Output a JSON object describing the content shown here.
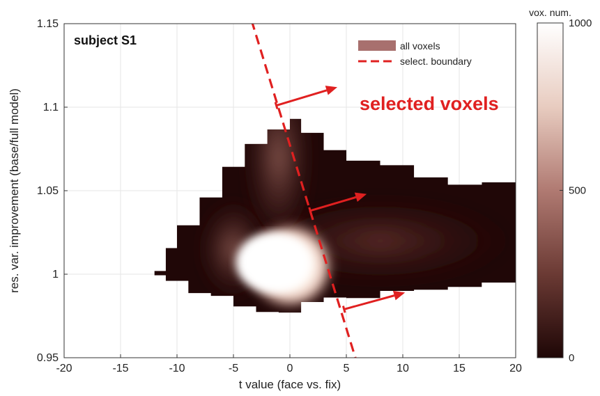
{
  "chart_data": {
    "type": "heatmap",
    "title": "subject S1",
    "xlabel": "t value (face vs. fix)",
    "ylabel": "res. var. improvement (base/full model)",
    "xlim": [
      -20,
      20
    ],
    "ylim": [
      0.95,
      1.15
    ],
    "xticks": [
      -20,
      -15,
      -10,
      -5,
      0,
      5,
      10,
      15,
      20
    ],
    "xtick_labels": [
      "-20",
      "-15",
      "-10",
      "-5",
      "0",
      "5",
      "10",
      "15",
      "20"
    ],
    "yticks": [
      0.95,
      1.0,
      1.05,
      1.1,
      1.15
    ],
    "ytick_labels": [
      "0.95",
      "1",
      "1.05",
      "1.1",
      "1.15"
    ],
    "grid": true,
    "legend": {
      "placement": "top-right",
      "entries": [
        {
          "label": "all voxels",
          "color": "#a8706e"
        },
        {
          "label": "select. boundary",
          "color": "#e02020",
          "style": "dashed"
        }
      ]
    },
    "colorbar": {
      "title": "vox. num.",
      "range": [
        0,
        1000
      ],
      "ticks": [
        0,
        500,
        1000
      ],
      "tick_labels": [
        "0",
        "500",
        "1000"
      ],
      "colors": [
        "#1e0606",
        "#6b3a34",
        "#b07a72",
        "#e8ccc0",
        "#ffffff"
      ]
    },
    "density": {
      "peak": {
        "t": -1.5,
        "r": 1.007,
        "count": 1000
      },
      "core": {
        "t": 0.0,
        "r": 1.005
      },
      "upper_lobe_peak": {
        "t": -1.0,
        "r": 1.07
      },
      "extent_t": [
        -12,
        20
      ],
      "extent_r": [
        0.977,
        1.093
      ],
      "upper_edge": [
        {
          "t": -12,
          "r": 1.0
        },
        {
          "t": -11,
          "r": 1.015
        },
        {
          "t": -10,
          "r": 1.03
        },
        {
          "t": -8,
          "r": 1.048
        },
        {
          "t": -6,
          "r": 1.063
        },
        {
          "t": -4,
          "r": 1.078
        },
        {
          "t": -2,
          "r": 1.088
        },
        {
          "t": 0,
          "r": 1.091
        },
        {
          "t": 1,
          "r": 1.084
        },
        {
          "t": 3,
          "r": 1.075
        },
        {
          "t": 5,
          "r": 1.07
        },
        {
          "t": 8,
          "r": 1.064
        },
        {
          "t": 11,
          "r": 1.058
        },
        {
          "t": 14,
          "r": 1.055
        },
        {
          "t": 17,
          "r": 1.053
        },
        {
          "t": 20,
          "r": 1.05
        }
      ],
      "lower_edge": [
        {
          "t": 20,
          "r": 0.997
        },
        {
          "t": 17,
          "r": 0.993
        },
        {
          "t": 14,
          "r": 0.99
        },
        {
          "t": 11,
          "r": 0.988
        },
        {
          "t": 8,
          "r": 0.987
        },
        {
          "t": 5,
          "r": 0.986
        },
        {
          "t": 3,
          "r": 0.982
        },
        {
          "t": 1,
          "r": 0.979
        },
        {
          "t": -1,
          "r": 0.978
        },
        {
          "t": -3,
          "r": 0.98
        },
        {
          "t": -5,
          "r": 0.985
        },
        {
          "t": -7,
          "r": 0.99
        },
        {
          "t": -9,
          "r": 0.996
        },
        {
          "t": -11,
          "r": 0.998
        },
        {
          "t": -12,
          "r": 1.0
        }
      ]
    },
    "boundary": {
      "points": [
        {
          "t": -3.4,
          "r": 1.152
        },
        {
          "t": 5.8,
          "r": 0.95
        }
      ]
    },
    "arrows": [
      {
        "from": {
          "t": -1.2,
          "r": 1.101
        },
        "to": {
          "t": 4.2,
          "r": 1.112
        }
      },
      {
        "from": {
          "t": 1.8,
          "r": 1.038
        },
        "to": {
          "t": 6.8,
          "r": 1.048
        }
      },
      {
        "from": {
          "t": 4.8,
          "r": 0.979
        },
        "to": {
          "t": 10.2,
          "r": 0.989
        }
      }
    ],
    "annotations": [
      {
        "text": "selected voxels",
        "color": "#e02020"
      }
    ]
  }
}
